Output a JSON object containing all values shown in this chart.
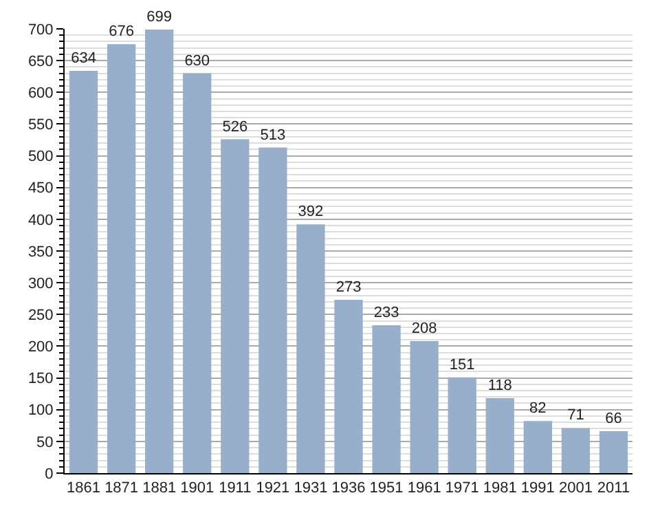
{
  "chart_data": {
    "type": "bar",
    "categories": [
      "1861",
      "1871",
      "1881",
      "1901",
      "1911",
      "1921",
      "1931",
      "1936",
      "1951",
      "1961",
      "1971",
      "1981",
      "1991",
      "2001",
      "2011"
    ],
    "values": [
      634,
      676,
      699,
      630,
      526,
      513,
      392,
      273,
      233,
      208,
      151,
      118,
      82,
      71,
      66
    ],
    "color": "#97afcb",
    "ylim": [
      0,
      700
    ],
    "yticks": [
      0,
      50,
      100,
      150,
      200,
      250,
      300,
      350,
      400,
      450,
      500,
      550,
      600,
      650,
      700
    ],
    "grid": "y",
    "data_labels": true
  }
}
